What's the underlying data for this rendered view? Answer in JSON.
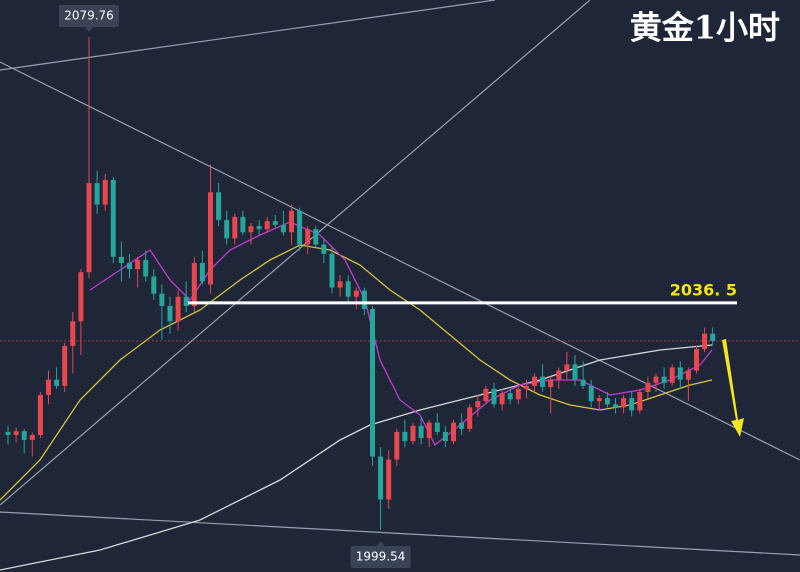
{
  "chart_data": {
    "type": "candlestick",
    "title": "黄金1小时",
    "ylim": [
      1992.7,
      2085.8
    ],
    "up_color": "#e8474e",
    "down_color": "#26a69a",
    "open": [
      2015.5,
      2015.0,
      2015.6,
      2014.2,
      2015.0,
      2021.5,
      2024.0,
      2023.0,
      2029.5,
      2033.5,
      2041.5,
      2056.0,
      2052.5,
      2056.5,
      2044.0,
      2043.0,
      2042.0,
      2043.5,
      2040.8,
      2038.0,
      2036.0,
      2033.5,
      2037.5,
      2036.0,
      2043.0,
      2039.5,
      2054.5,
      2050.0,
      2047.0,
      2050.5,
      2048.0,
      2049.0,
      2048.5,
      2049.8,
      2049.2,
      2048.0,
      2051.5,
      2046.0,
      2048.5,
      2046.0,
      2044.5,
      2039.0,
      2040.0,
      2037.5,
      2038.5,
      2035.5,
      2011.5,
      2004.5,
      2011.0,
      2015.5,
      2014.0,
      2016.5,
      2014.5,
      2017.0,
      2015.5,
      2014.0,
      2017.0,
      2016.0,
      2019.5,
      2020.5,
      2022.5,
      2020.0,
      2021.8,
      2020.8,
      2022.5,
      2023.0,
      2024.5,
      2022.8,
      2024.0,
      2025.5,
      2026.5,
      2024.0,
      2023.0,
      2020.5,
      2021.0,
      2020.0,
      2019.5,
      2021.0,
      2019.0,
      2022.0,
      2023.5,
      2024.5,
      2023.5,
      2026.0,
      2024.0,
      2025.5,
      2029.0,
      2031.5
    ],
    "high": [
      2016.5,
      2016.2,
      2016.0,
      2015.4,
      2022.0,
      2025.5,
      2026.0,
      2030.0,
      2035.0,
      2042.0,
      2079.76,
      2058.0,
      2057.5,
      2057.0,
      2046.5,
      2044.5,
      2044.0,
      2045.0,
      2042.0,
      2039.5,
      2037.5,
      2038.5,
      2040.0,
      2044.0,
      2045.0,
      2059.0,
      2056.0,
      2051.5,
      2051.0,
      2051.5,
      2049.5,
      2050.0,
      2050.5,
      2050.8,
      2051.5,
      2052.5,
      2052.0,
      2049.0,
      2049.0,
      2047.0,
      2045.5,
      2041.0,
      2041.0,
      2039.0,
      2039.0,
      2036.0,
      2013.0,
      2012.5,
      2016.0,
      2017.5,
      2017.0,
      2018.0,
      2017.5,
      2018.5,
      2016.5,
      2017.5,
      2018.5,
      2020.0,
      2021.5,
      2023.0,
      2023.5,
      2022.5,
      2022.5,
      2023.0,
      2024.0,
      2025.0,
      2026.5,
      2024.5,
      2026.0,
      2028.5,
      2028.0,
      2027.0,
      2024.0,
      2021.5,
      2022.0,
      2021.0,
      2021.5,
      2022.0,
      2022.5,
      2024.5,
      2025.0,
      2026.0,
      2026.5,
      2027.0,
      2026.0,
      2029.5,
      2032.5,
      2032.5
    ],
    "low": [
      2013.5,
      2013.8,
      2012.0,
      2011.5,
      2014.5,
      2020.0,
      2022.5,
      2022.0,
      2025.0,
      2028.0,
      2040.5,
      2051.0,
      2051.5,
      2043.0,
      2040.0,
      2040.5,
      2039.0,
      2040.0,
      2037.0,
      2030.5,
      2031.5,
      2032.0,
      2035.0,
      2035.0,
      2039.5,
      2038.0,
      2049.0,
      2046.0,
      2046.0,
      2047.5,
      2046.0,
      2047.5,
      2047.8,
      2048.8,
      2047.5,
      2046.0,
      2045.0,
      2044.5,
      2045.5,
      2043.0,
      2038.0,
      2037.5,
      2036.5,
      2035.5,
      2034.5,
      2010.0,
      1999.54,
      2003.0,
      2010.0,
      2013.0,
      2013.5,
      2013.5,
      2013.0,
      2015.0,
      2013.0,
      2013.5,
      2015.0,
      2015.5,
      2018.0,
      2020.0,
      2019.5,
      2019.0,
      2020.0,
      2020.0,
      2021.0,
      2022.0,
      2022.0,
      2018.5,
      2022.5,
      2024.0,
      2023.0,
      2022.5,
      2019.5,
      2019.0,
      2019.5,
      2018.5,
      2018.5,
      2018.0,
      2018.5,
      2021.0,
      2022.0,
      2022.5,
      2023.0,
      2022.5,
      2020.5,
      2025.0,
      2028.5,
      2029.5
    ],
    "close": [
      2015.0,
      2015.6,
      2014.2,
      2015.0,
      2021.5,
      2024.0,
      2023.0,
      2029.5,
      2033.5,
      2041.5,
      2056.0,
      2052.5,
      2056.5,
      2044.0,
      2043.0,
      2042.0,
      2043.5,
      2040.8,
      2038.0,
      2036.0,
      2033.5,
      2037.5,
      2036.0,
      2043.0,
      2040.0,
      2054.5,
      2050.0,
      2047.0,
      2050.5,
      2048.0,
      2049.0,
      2048.5,
      2049.8,
      2049.2,
      2048.0,
      2051.5,
      2046.0,
      2048.5,
      2046.0,
      2044.5,
      2039.0,
      2040.0,
      2037.5,
      2038.5,
      2035.5,
      2011.5,
      2004.5,
      2011.0,
      2015.5,
      2014.0,
      2016.5,
      2014.5,
      2017.0,
      2015.5,
      2014.0,
      2017.0,
      2016.0,
      2019.5,
      2020.5,
      2022.5,
      2020.0,
      2021.8,
      2020.8,
      2022.5,
      2023.0,
      2024.5,
      2022.8,
      2024.0,
      2025.5,
      2026.5,
      2024.0,
      2023.0,
      2020.5,
      2021.0,
      2020.0,
      2019.5,
      2021.0,
      2019.0,
      2022.0,
      2023.5,
      2024.5,
      2023.5,
      2026.0,
      2024.0,
      2025.5,
      2029.0,
      2031.5,
      2030.3
    ],
    "level": {
      "value": 2036.5,
      "label": "2036. 5"
    }
  }
}
